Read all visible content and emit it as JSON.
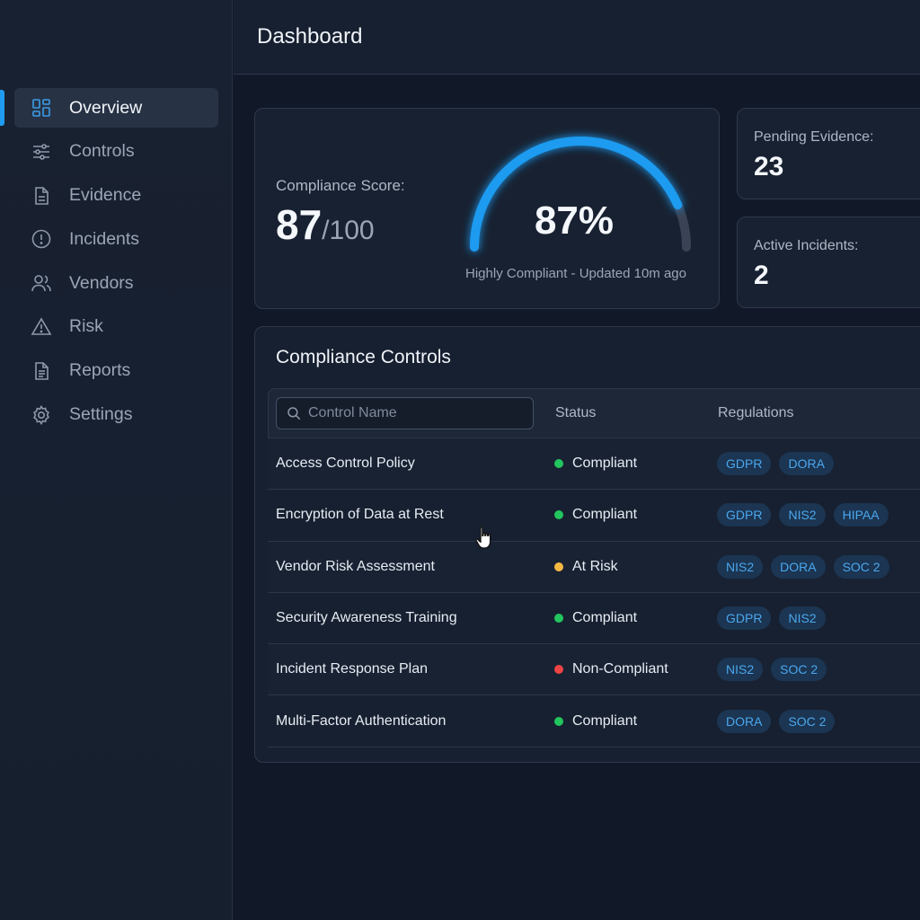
{
  "sidebar": {
    "items": [
      {
        "label": "Overview",
        "icon": "grid-icon",
        "active": true
      },
      {
        "label": "Controls",
        "icon": "sliders-icon",
        "active": false
      },
      {
        "label": "Evidence",
        "icon": "document-icon",
        "active": false
      },
      {
        "label": "Incidents",
        "icon": "alert-circle-icon",
        "active": false
      },
      {
        "label": "Vendors",
        "icon": "users-icon",
        "active": false
      },
      {
        "label": "Risk",
        "icon": "warning-triangle-icon",
        "active": false
      },
      {
        "label": "Reports",
        "icon": "report-icon",
        "active": false
      },
      {
        "label": "Settings",
        "icon": "gear-icon",
        "active": false
      }
    ]
  },
  "header": {
    "title": "Dashboard"
  },
  "score": {
    "label": "Compliance Score:",
    "value": "87",
    "max": "/100",
    "gauge_percent": "87%",
    "gauge_fraction": 0.87,
    "subtitle": "Highly Compliant - Updated 10m ago"
  },
  "stats": {
    "pending_label": "Pending Evidence:",
    "pending_value": "23",
    "incidents_label": "Active Incidents:",
    "incidents_value": "2"
  },
  "controls": {
    "title": "Compliance Controls",
    "search_placeholder": "Control Name",
    "col_status": "Status",
    "col_regulations": "Regulations",
    "rows": [
      {
        "name": "Access Control Policy",
        "status": "Compliant",
        "regs": [
          "GDPR",
          "DORA"
        ]
      },
      {
        "name": "Encryption of Data at Rest",
        "status": "Compliant",
        "regs": [
          "GDPR",
          "NIS2",
          "HIPAA"
        ]
      },
      {
        "name": "Vendor Risk Assessment",
        "status": "At Risk",
        "regs": [
          "NIS2",
          "DORA",
          "SOC 2"
        ]
      },
      {
        "name": "Security Awareness Training",
        "status": "Compliant",
        "regs": [
          "GDPR",
          "NIS2"
        ]
      },
      {
        "name": "Incident Response Plan",
        "status": "Non-Compliant",
        "regs": [
          "NIS2",
          "SOC 2"
        ]
      },
      {
        "name": "Multi-Factor Authentication",
        "status": "Compliant",
        "regs": [
          "DORA",
          "SOC 2"
        ]
      }
    ]
  },
  "colors": {
    "accent": "#1f9bf0",
    "compliant": "#22c55e",
    "at_risk": "#f5b942",
    "non_compliant": "#ef4444",
    "tag_bg": "#1b3552",
    "tag_text": "#4ba7ee"
  }
}
